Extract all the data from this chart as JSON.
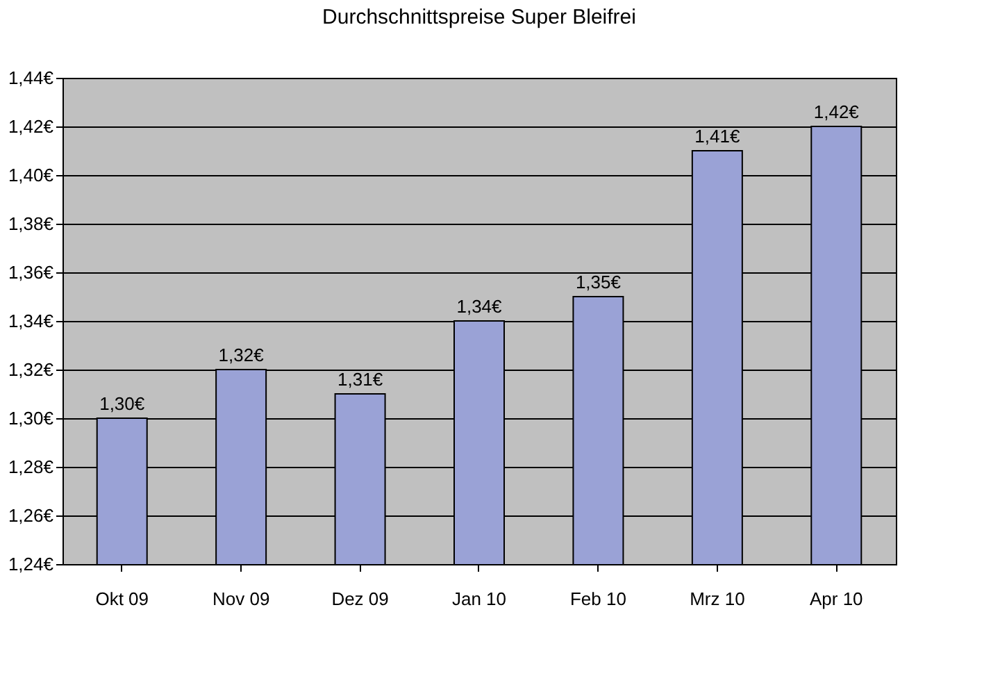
{
  "chart_data": {
    "type": "bar",
    "title": "Durchschnittspreise Super Bleifrei",
    "categories": [
      "Okt 09",
      "Nov 09",
      "Dez 09",
      "Jan 10",
      "Feb 10",
      "Mrz 10",
      "Apr 10"
    ],
    "values": [
      1.3,
      1.32,
      1.31,
      1.34,
      1.35,
      1.41,
      1.42
    ],
    "value_labels": [
      "1,30€",
      "1,32€",
      "1,31€",
      "1,34€",
      "1,35€",
      "1,41€",
      "1,42€"
    ],
    "color": "#9aa2d6",
    "ylim": [
      1.24,
      1.44
    ],
    "yticks": [
      {
        "value": 1.24,
        "label": "1,24€"
      },
      {
        "value": 1.26,
        "label": "1,26€"
      },
      {
        "value": 1.28,
        "label": "1,28€"
      },
      {
        "value": 1.3,
        "label": "1,30€"
      },
      {
        "value": 1.32,
        "label": "1,32€"
      },
      {
        "value": 1.34,
        "label": "1,34€"
      },
      {
        "value": 1.36,
        "label": "1,36€"
      },
      {
        "value": 1.38,
        "label": "1,38€"
      },
      {
        "value": 1.4,
        "label": "1,40€"
      },
      {
        "value": 1.42,
        "label": "1,42€"
      },
      {
        "value": 1.44,
        "label": "1,44€"
      }
    ],
    "grid": "y"
  }
}
